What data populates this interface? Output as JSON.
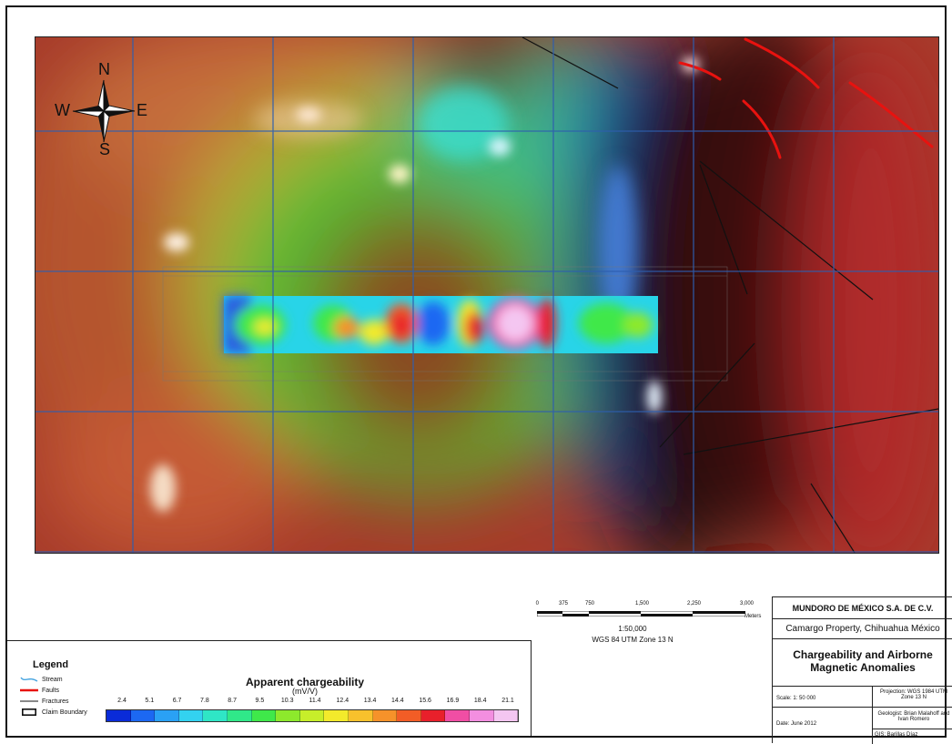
{
  "map": {
    "compass": {
      "n": "N",
      "s": "S",
      "e": "E",
      "w": "W"
    },
    "colors": {
      "grid": "#2f5fb0",
      "fault": "#e8120f",
      "fracture": "#111111",
      "magnetic_high": "#a3272a",
      "magnetic_mid": "#b06a3c",
      "magnetic_green": "#3fc43a",
      "magnetic_low": "#1b3a8a"
    }
  },
  "legend": {
    "title": "Legend",
    "items": [
      {
        "label": "Stream",
        "symbol": "stream-line",
        "color": "#4aa6e0"
      },
      {
        "label": "Faults",
        "symbol": "fault-line",
        "color": "#e8120f"
      },
      {
        "label": "Fractures",
        "symbol": "fracture-line",
        "color": "#111111"
      },
      {
        "label": "Claim Boundary",
        "symbol": "claim-box",
        "color": "#111111"
      }
    ]
  },
  "colorbar": {
    "title": "Apparent chargeability",
    "unit": "(mV/V)",
    "labels": [
      "2.4",
      "5.1",
      "6.7",
      "7.8",
      "8.7",
      "9.5",
      "10.3",
      "11.4",
      "12.4",
      "13.4",
      "14.4",
      "15.6",
      "16.9",
      "18.4",
      "21.1"
    ],
    "colors": [
      "#0a2bd8",
      "#1c68f2",
      "#2aa1f5",
      "#33d2f0",
      "#2fe6c6",
      "#30e889",
      "#3fe84a",
      "#8de92c",
      "#c7ee2a",
      "#f3ea2b",
      "#f8c12c",
      "#f6922a",
      "#f25d26",
      "#e8202b",
      "#f04ea4",
      "#f38ee0",
      "#f4c6f1"
    ]
  },
  "scalebar": {
    "ticks": [
      "0",
      "375",
      "750",
      "1,500",
      "2,250",
      "3,000"
    ],
    "units": "Meters",
    "ratio": "1:50,000",
    "datum": "WGS 84 UTM Zone 13 N"
  },
  "titleblock": {
    "company": "MUNDORO DE MÉXICO S.A. DE C.V.",
    "property": "Camargo Property, Chihuahua México",
    "title_line1": "Chargeability and Airborne",
    "title_line2": "Magnetic Anomalies",
    "scale": "Scale:  1: 50 000",
    "date": "Date: June 2012",
    "projection": "Projection: WGS 1984 UTM Zone 13 N",
    "geologist": "Geologist: Brian Malahoff and Ivan Romero",
    "gis": "GIS: Barillas Díaz"
  }
}
